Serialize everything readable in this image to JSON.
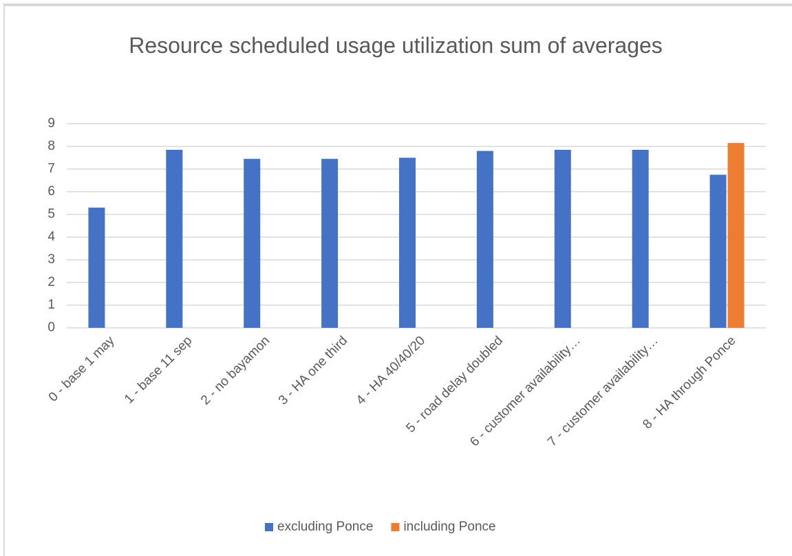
{
  "chart_data": {
    "type": "bar",
    "title": "Resource scheduled usage utilization sum of averages",
    "categories": [
      "0 - base 1 may",
      "1 - base 11 sep",
      "2 - no bayamon",
      "3 - HA one third",
      "4 - HA 40/40/20",
      "5 - road delay doubled",
      "6 - customer availability…",
      "7 - customer availability…",
      "8 - HA through Ponce"
    ],
    "series": [
      {
        "name": "excluding Ponce",
        "color": "#4472c4",
        "values": [
          5.3,
          7.85,
          7.45,
          7.45,
          7.5,
          7.8,
          7.85,
          7.85,
          6.75
        ]
      },
      {
        "name": "including Ponce",
        "color": "#ed7d31",
        "values": [
          null,
          null,
          null,
          null,
          null,
          null,
          null,
          null,
          8.15
        ]
      }
    ],
    "ylim": [
      0,
      9
    ],
    "yticks": [
      0,
      1,
      2,
      3,
      4,
      5,
      6,
      7,
      8,
      9
    ],
    "grid": true,
    "legend": "bottom"
  }
}
